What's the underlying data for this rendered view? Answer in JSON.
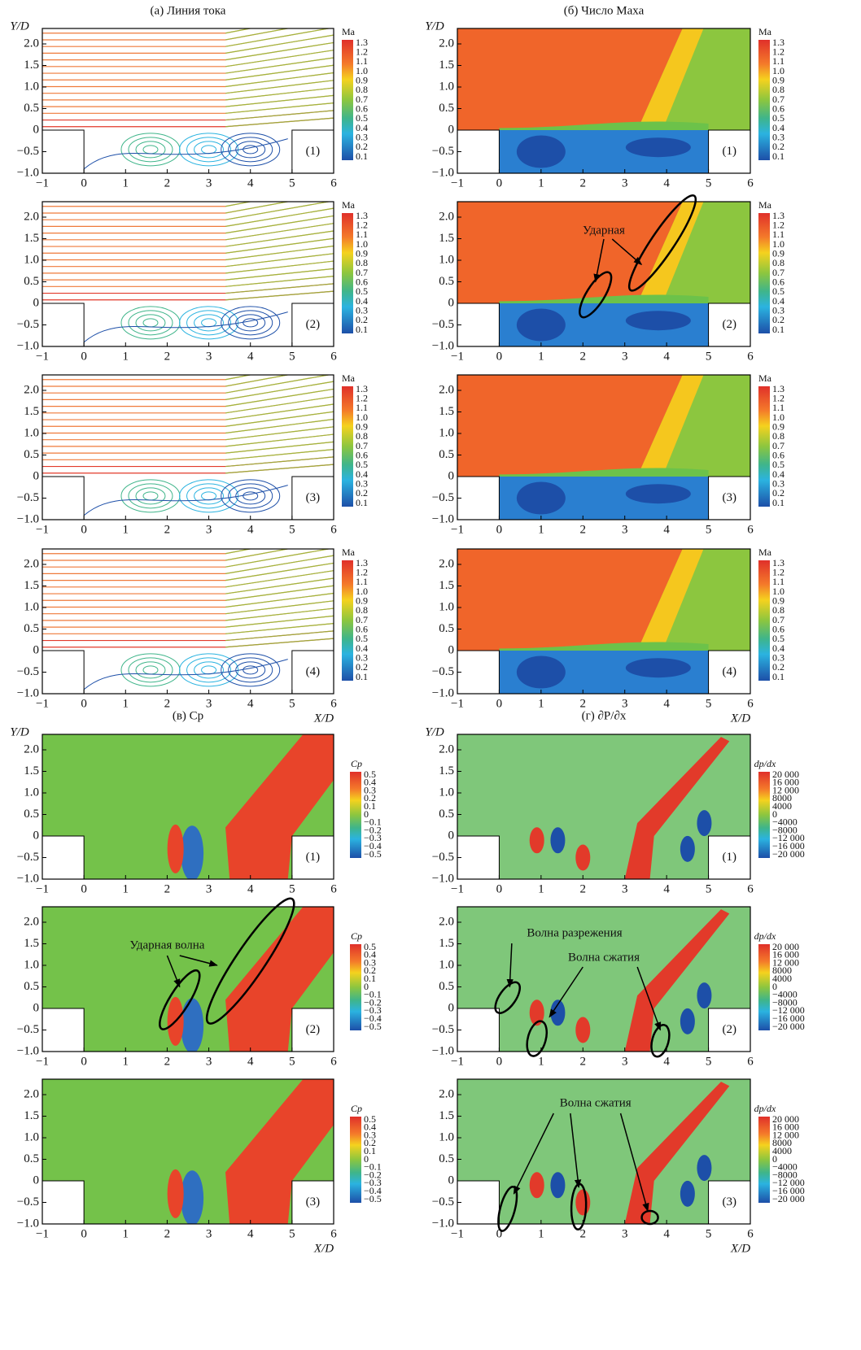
{
  "figures": [
    {
      "title": "(а) Линия тока",
      "y_label": "Y/D",
      "x_label": "X/D",
      "colorbar": {
        "title": "Ma",
        "labels": [
          "1.3",
          "1.2",
          "1.1",
          "1.0",
          "0.9",
          "0.8",
          "0.7",
          "0.6",
          "0.5",
          "0.4",
          "0.3",
          "0.2",
          "0.1"
        ]
      },
      "panels": [
        {
          "label": "(1)"
        },
        {
          "label": "(2)"
        },
        {
          "label": "(3)"
        },
        {
          "label": "(4)"
        }
      ]
    },
    {
      "title": "(б) Число Маха",
      "y_label": "Y/D",
      "x_label": "X/D",
      "colorbar": {
        "title": "Ma",
        "labels": [
          "1.3",
          "1.2",
          "1.1",
          "1.0",
          "0.9",
          "0.8",
          "0.7",
          "0.6",
          "0.5",
          "0.4",
          "0.3",
          "0.2",
          "0.1"
        ]
      },
      "panels": [
        {
          "label": "(1)"
        },
        {
          "label": "(2)",
          "annotations": [
            "Ударная"
          ]
        },
        {
          "label": "(3)"
        },
        {
          "label": "(4)"
        }
      ]
    },
    {
      "title": "(в) Cp",
      "y_label": "Y/D",
      "x_label": "X/D",
      "colorbar": {
        "title": "Cp",
        "labels": [
          "0.5",
          "0.4",
          "0.3",
          "0.2",
          "0.1",
          "0",
          "−0.1",
          "−0.2",
          "−0.3",
          "−0.4",
          "−0.5"
        ]
      },
      "panels": [
        {
          "label": "(1)"
        },
        {
          "label": "(2)",
          "annotations": [
            "Ударная волна"
          ]
        },
        {
          "label": "(3)"
        }
      ]
    },
    {
      "title": "(г) ∂P/∂x",
      "y_label": "Y/D",
      "x_label": "X/D",
      "colorbar": {
        "title": "dp/dx",
        "labels": [
          "20 000",
          "16 000",
          "12 000",
          "8000",
          "4000",
          "0",
          "−4000",
          "−8000",
          "−12 000",
          "−16 000",
          "−20 000"
        ]
      },
      "panels": [
        {
          "label": "(1)"
        },
        {
          "label": "(2)",
          "annotations": [
            "Волна разрежения",
            "Волна сжатия"
          ]
        },
        {
          "label": "(3)",
          "annotations": [
            "Волна сжатия"
          ]
        }
      ]
    }
  ],
  "axis": {
    "xticks": [
      "−1",
      "0",
      "1",
      "2",
      "3",
      "4",
      "5",
      "6"
    ],
    "yticks": [
      "−1.0",
      "−0.5",
      "0",
      "0.5",
      "1.0",
      "1.5",
      "2.0"
    ]
  }
}
